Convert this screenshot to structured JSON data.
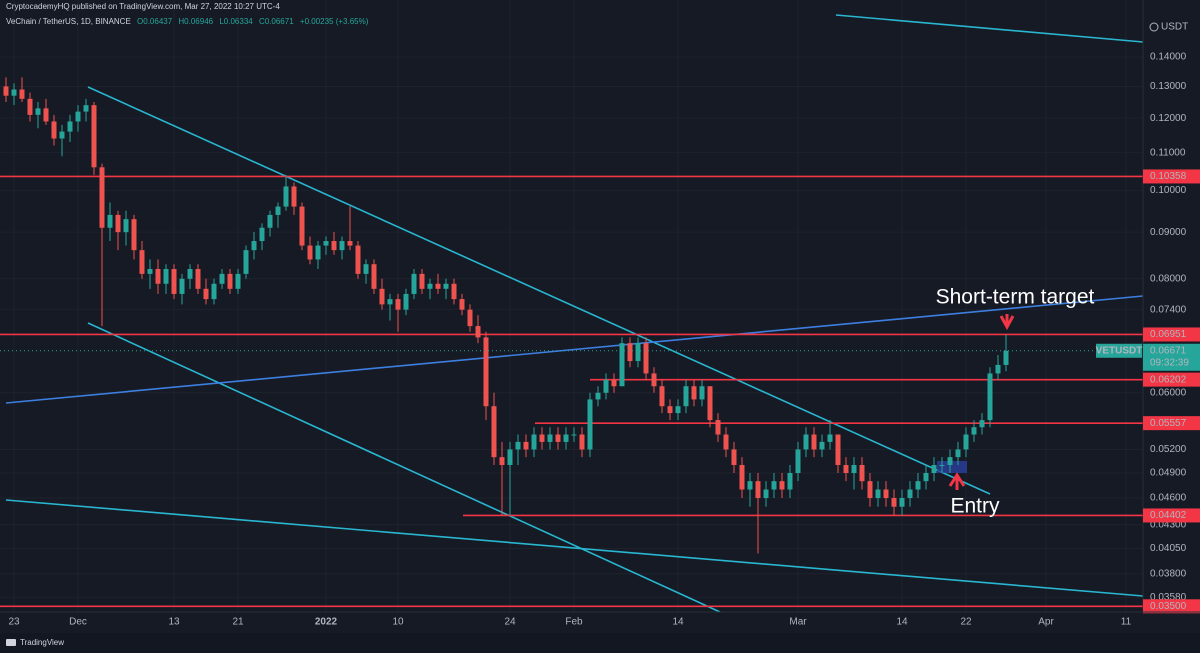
{
  "header": {
    "publisher": "CryptocademyHQ published on TradingView.com, Mar 27, 2022 10:27 UTC-4",
    "symbol": "VeChain / TetherUS, 1D, BINANCE",
    "ohlc": [
      "O0.06437",
      "H0.06946",
      "L0.06334",
      "C0.06671",
      "+0.00235 (+3.65%)"
    ]
  },
  "chart_data": {
    "type": "candlestick",
    "currency": "USDT",
    "categories": [
      null,
      "23",
      null,
      null,
      null,
      null,
      null,
      null,
      null,
      "Dec",
      null,
      null,
      null,
      null,
      null,
      null,
      null,
      null,
      null,
      null,
      null,
      "13",
      null,
      null,
      null,
      null,
      null,
      null,
      null,
      "21",
      null,
      null,
      null,
      null,
      null,
      null,
      null,
      null,
      null,
      null,
      "2022",
      null,
      null,
      null,
      null,
      null,
      null,
      null,
      null,
      "10",
      null,
      null,
      null,
      null,
      null,
      null,
      null,
      null,
      null,
      null,
      null,
      null,
      null,
      "24",
      null,
      null,
      null,
      null,
      null,
      null,
      null,
      "Feb",
      null,
      null,
      null,
      null,
      null,
      null,
      null,
      null,
      null,
      null,
      null,
      null,
      "14",
      null,
      null,
      null,
      null,
      null,
      null,
      null,
      null,
      null,
      null,
      null,
      null,
      null,
      null,
      "Mar",
      null,
      null,
      null,
      null,
      null,
      null,
      null,
      null,
      null,
      null,
      null,
      null,
      "14",
      null,
      null,
      null,
      null,
      null,
      null,
      null,
      "22",
      null,
      null,
      null,
      null,
      null,
      null,
      null,
      null,
      null,
      "Apr",
      null,
      null,
      null,
      null,
      null,
      null,
      null,
      null,
      null,
      "11",
      null
    ],
    "candles": [
      [
        0.13,
        0.133,
        0.125,
        0.127
      ],
      [
        0.127,
        0.131,
        0.124,
        0.129
      ],
      [
        0.129,
        0.133,
        0.125,
        0.126
      ],
      [
        0.126,
        0.128,
        0.119,
        0.121
      ],
      [
        0.121,
        0.125,
        0.117,
        0.123
      ],
      [
        0.123,
        0.126,
        0.118,
        0.119
      ],
      [
        0.119,
        0.121,
        0.112,
        0.114
      ],
      [
        0.114,
        0.118,
        0.109,
        0.116
      ],
      [
        0.116,
        0.121,
        0.113,
        0.119
      ],
      [
        0.119,
        0.124,
        0.116,
        0.122
      ],
      [
        0.122,
        0.126,
        0.119,
        0.124
      ],
      [
        0.124,
        0.125,
        0.104,
        0.106
      ],
      [
        0.106,
        0.107,
        0.071,
        0.091
      ],
      [
        0.091,
        0.097,
        0.088,
        0.094
      ],
      [
        0.094,
        0.095,
        0.086,
        0.09
      ],
      [
        0.09,
        0.095,
        0.087,
        0.093
      ],
      [
        0.093,
        0.094,
        0.084,
        0.086
      ],
      [
        0.086,
        0.088,
        0.08,
        0.081
      ],
      [
        0.081,
        0.084,
        0.078,
        0.082
      ],
      [
        0.082,
        0.084,
        0.077,
        0.079
      ],
      [
        0.079,
        0.083,
        0.077,
        0.082
      ],
      [
        0.082,
        0.083,
        0.076,
        0.077
      ],
      [
        0.077,
        0.081,
        0.075,
        0.08
      ],
      [
        0.08,
        0.083,
        0.078,
        0.082
      ],
      [
        0.082,
        0.083,
        0.077,
        0.078
      ],
      [
        0.078,
        0.08,
        0.075,
        0.076
      ],
      [
        0.076,
        0.08,
        0.075,
        0.079
      ],
      [
        0.079,
        0.082,
        0.078,
        0.081
      ],
      [
        0.081,
        0.082,
        0.077,
        0.078
      ],
      [
        0.078,
        0.082,
        0.077,
        0.081
      ],
      [
        0.081,
        0.087,
        0.08,
        0.086
      ],
      [
        0.086,
        0.09,
        0.084,
        0.088
      ],
      [
        0.088,
        0.092,
        0.086,
        0.091
      ],
      [
        0.091,
        0.095,
        0.089,
        0.094
      ],
      [
        0.094,
        0.097,
        0.091,
        0.096
      ],
      [
        0.096,
        0.104,
        0.095,
        0.101
      ],
      [
        0.101,
        0.102,
        0.094,
        0.096
      ],
      [
        0.096,
        0.097,
        0.086,
        0.087
      ],
      [
        0.087,
        0.089,
        0.083,
        0.084
      ],
      [
        0.084,
        0.088,
        0.082,
        0.087
      ],
      [
        0.087,
        0.089,
        0.085,
        0.088
      ],
      [
        0.088,
        0.09,
        0.085,
        0.086
      ],
      [
        0.086,
        0.089,
        0.084,
        0.088
      ],
      [
        0.088,
        0.096,
        0.086,
        0.087
      ],
      [
        0.087,
        0.088,
        0.08,
        0.081
      ],
      [
        0.081,
        0.084,
        0.079,
        0.083
      ],
      [
        0.083,
        0.084,
        0.077,
        0.078
      ],
      [
        0.078,
        0.08,
        0.074,
        0.075
      ],
      [
        0.075,
        0.077,
        0.072,
        0.076
      ],
      [
        0.076,
        0.077,
        0.07,
        0.074
      ],
      [
        0.074,
        0.078,
        0.073,
        0.077
      ],
      [
        0.077,
        0.082,
        0.076,
        0.081
      ],
      [
        0.081,
        0.082,
        0.077,
        0.078
      ],
      [
        0.078,
        0.08,
        0.076,
        0.079
      ],
      [
        0.079,
        0.081,
        0.077,
        0.078
      ],
      [
        0.078,
        0.08,
        0.076,
        0.079
      ],
      [
        0.079,
        0.08,
        0.075,
        0.076
      ],
      [
        0.076,
        0.077,
        0.073,
        0.074
      ],
      [
        0.074,
        0.075,
        0.07,
        0.071
      ],
      [
        0.071,
        0.073,
        0.068,
        0.069
      ],
      [
        0.069,
        0.07,
        0.056,
        0.058
      ],
      [
        0.058,
        0.06,
        0.05,
        0.051
      ],
      [
        0.051,
        0.053,
        0.044,
        0.05
      ],
      [
        0.05,
        0.053,
        0.044,
        0.052
      ],
      [
        0.052,
        0.054,
        0.05,
        0.053
      ],
      [
        0.053,
        0.054,
        0.051,
        0.052
      ],
      [
        0.052,
        0.055,
        0.051,
        0.054
      ],
      [
        0.054,
        0.055,
        0.052,
        0.053
      ],
      [
        0.053,
        0.055,
        0.052,
        0.054
      ],
      [
        0.054,
        0.055,
        0.052,
        0.053
      ],
      [
        0.053,
        0.055,
        0.052,
        0.054
      ],
      [
        0.054,
        0.055,
        0.053,
        0.054
      ],
      [
        0.054,
        0.055,
        0.051,
        0.052
      ],
      [
        0.052,
        0.06,
        0.051,
        0.059
      ],
      [
        0.059,
        0.061,
        0.058,
        0.06
      ],
      [
        0.06,
        0.063,
        0.059,
        0.062
      ],
      [
        0.062,
        0.063,
        0.06,
        0.061
      ],
      [
        0.061,
        0.069,
        0.061,
        0.068
      ],
      [
        0.068,
        0.069,
        0.064,
        0.065
      ],
      [
        0.065,
        0.069,
        0.064,
        0.068
      ],
      [
        0.068,
        0.069,
        0.062,
        0.063
      ],
      [
        0.063,
        0.064,
        0.06,
        0.061
      ],
      [
        0.061,
        0.062,
        0.057,
        0.058
      ],
      [
        0.058,
        0.059,
        0.056,
        0.057
      ],
      [
        0.057,
        0.059,
        0.056,
        0.058
      ],
      [
        0.058,
        0.062,
        0.057,
        0.061
      ],
      [
        0.061,
        0.062,
        0.058,
        0.059
      ],
      [
        0.059,
        0.062,
        0.058,
        0.061
      ],
      [
        0.061,
        0.061,
        0.055,
        0.056
      ],
      [
        0.056,
        0.057,
        0.053,
        0.054
      ],
      [
        0.054,
        0.055,
        0.051,
        0.052
      ],
      [
        0.052,
        0.053,
        0.049,
        0.05
      ],
      [
        0.05,
        0.051,
        0.046,
        0.047
      ],
      [
        0.047,
        0.049,
        0.045,
        0.048
      ],
      [
        0.048,
        0.049,
        0.04,
        0.046
      ],
      [
        0.046,
        0.048,
        0.045,
        0.047
      ],
      [
        0.047,
        0.049,
        0.046,
        0.048
      ],
      [
        0.048,
        0.049,
        0.046,
        0.047
      ],
      [
        0.047,
        0.05,
        0.046,
        0.049
      ],
      [
        0.049,
        0.053,
        0.048,
        0.052
      ],
      [
        0.052,
        0.055,
        0.051,
        0.054
      ],
      [
        0.054,
        0.055,
        0.051,
        0.052
      ],
      [
        0.052,
        0.054,
        0.051,
        0.053
      ],
      [
        0.053,
        0.056,
        0.052,
        0.054
      ],
      [
        0.054,
        0.054,
        0.049,
        0.05
      ],
      [
        0.05,
        0.051,
        0.048,
        0.049
      ],
      [
        0.049,
        0.051,
        0.047,
        0.05
      ],
      [
        0.05,
        0.051,
        0.047,
        0.048
      ],
      [
        0.048,
        0.049,
        0.045,
        0.046
      ],
      [
        0.046,
        0.048,
        0.045,
        0.047
      ],
      [
        0.047,
        0.048,
        0.045,
        0.046
      ],
      [
        0.046,
        0.047,
        0.044,
        0.045
      ],
      [
        0.045,
        0.047,
        0.044,
        0.046
      ],
      [
        0.046,
        0.048,
        0.045,
        0.047
      ],
      [
        0.047,
        0.049,
        0.046,
        0.048
      ],
      [
        0.048,
        0.05,
        0.047,
        0.049
      ],
      [
        0.049,
        0.051,
        0.048,
        0.05
      ],
      [
        0.05,
        0.051,
        0.049,
        0.05
      ],
      [
        0.05,
        0.052,
        0.049,
        0.051
      ],
      [
        0.051,
        0.053,
        0.05,
        0.052
      ],
      [
        0.052,
        0.055,
        0.051,
        0.054
      ],
      [
        0.054,
        0.056,
        0.053,
        0.055
      ],
      [
        0.055,
        0.057,
        0.054,
        0.056
      ],
      [
        0.056,
        0.064,
        0.055,
        0.063
      ],
      [
        0.063,
        0.066,
        0.062,
        0.06437
      ],
      [
        0.06437,
        0.06946,
        0.06334,
        0.06671
      ],
      null,
      null,
      null,
      null,
      null,
      null,
      null,
      null,
      null,
      null,
      null,
      null,
      null,
      null,
      null,
      null
    ],
    "up_color": "#26a69a",
    "down_color": "#ef5350",
    "log_scale": true,
    "grid": true,
    "ylim": [
      0.0345,
      0.1617
    ],
    "yticks": [
      {
        "value": 0.14,
        "label": "0.14000"
      },
      {
        "value": 0.13,
        "label": "0.13000"
      },
      {
        "value": 0.12,
        "label": "0.12000"
      },
      {
        "value": 0.11,
        "label": "0.11000"
      },
      {
        "value": 0.1,
        "label": "0.10000"
      },
      {
        "value": 0.09,
        "label": "0.09000"
      },
      {
        "value": 0.08,
        "label": "0.08000"
      },
      {
        "value": 0.074,
        "label": "0.07400"
      },
      {
        "value": 0.06,
        "label": "0.06000"
      },
      {
        "value": 0.052,
        "label": "0.05200"
      },
      {
        "value": 0.049,
        "label": "0.04900"
      },
      {
        "value": 0.046,
        "label": "0.04600"
      },
      {
        "value": 0.043,
        "label": "0.04300"
      },
      {
        "value": 0.0405,
        "label": "0.04050"
      },
      {
        "value": 0.038,
        "label": "0.03800"
      },
      {
        "value": 0.0358,
        "label": "0.03580"
      }
    ],
    "levels": [
      0.10358,
      0.06951,
      0.06202,
      0.05557,
      0.04402,
      {
        "value": 0.035,
        "label": "0.03500"
      }
    ],
    "level_color": "#f23645",
    "price_tag": {
      "symbol": "VETUSDT",
      "value": 0.06671,
      "countdown": "09:32:39"
    },
    "annotations": [
      "Short-term target",
      "Entry"
    ]
  },
  "footer": {
    "brand": "TradingView"
  }
}
